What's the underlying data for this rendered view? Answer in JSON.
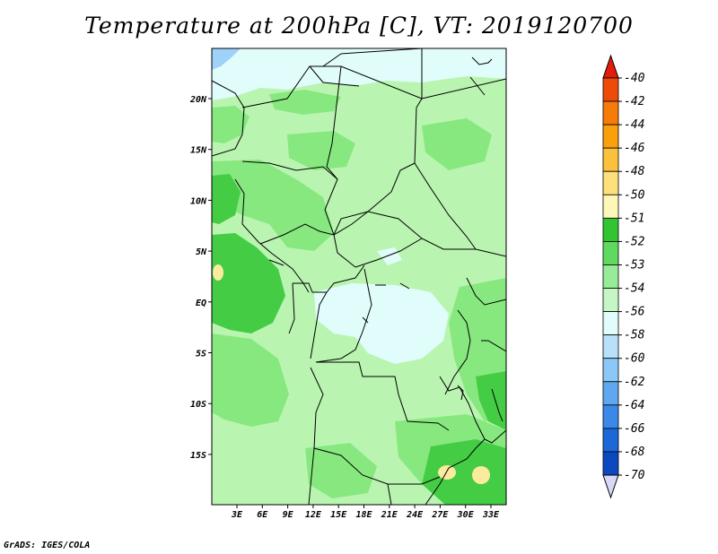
{
  "title": "Temperature at 200hPa [C], VT: 2019120700",
  "footer": "GrADS: IGES/COLA",
  "map": {
    "lon_labels": [
      "3E",
      "6E",
      "9E",
      "12E",
      "15E",
      "18E",
      "21E",
      "24E",
      "27E",
      "30E",
      "33E"
    ],
    "lat_labels": [
      "20N",
      "15N",
      "10N",
      "5N",
      "EQ",
      "5S",
      "10S",
      "15S"
    ]
  },
  "colorbar": {
    "labels": [
      "-40",
      "-42",
      "-44",
      "-46",
      "-48",
      "-50",
      "-51",
      "-52",
      "-53",
      "-54",
      "-56",
      "-58",
      "-60",
      "-62",
      "-64",
      "-66",
      "-68",
      "-70"
    ],
    "colors": [
      "#e01c0c",
      "#ee4b08",
      "#f77b08",
      "#f9a00c",
      "#fbc03c",
      "#fde07c",
      "#fff7b8",
      "#33c433",
      "#5fd95f",
      "#98eb98",
      "#c4f7c4",
      "#e2fbfb",
      "#b8e0fb",
      "#8cc8f7",
      "#5fa8f0",
      "#3c88e8",
      "#1c68d8",
      "#0c48c0",
      "#063098",
      "#04186c",
      "#000050"
    ],
    "colors_map": {
      "light_green": "#b9f5b0",
      "mid_green": "#88e880",
      "dark_green": "#45cc45",
      "cyan": "#e0fdfc",
      "yellow": "#fbeb9f",
      "light_blue": "#9fd2f8"
    }
  }
}
